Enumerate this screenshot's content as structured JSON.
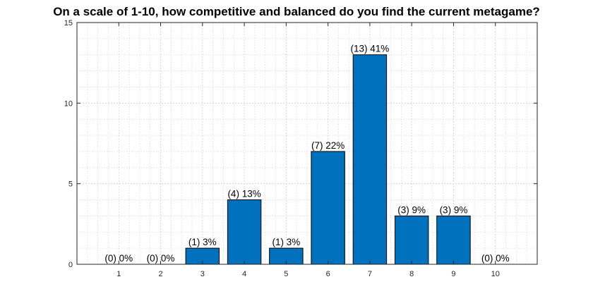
{
  "chart_data": {
    "type": "bar",
    "title": "On a scale of 1-10, how competitive and balanced do you find the current metagame?",
    "xlabel": "",
    "ylabel": "",
    "categories": [
      "1",
      "2",
      "3",
      "4",
      "5",
      "6",
      "7",
      "8",
      "9",
      "10"
    ],
    "values": [
      0,
      0,
      1,
      4,
      1,
      7,
      13,
      3,
      3,
      0
    ],
    "data_labels": [
      "(0) 0%",
      "(0) 0%",
      "(1) 3%",
      "(4) 13%",
      "(1) 3%",
      "(7) 22%",
      "(13) 41%",
      "(3) 9%",
      "(3) 9%",
      "(0) 0%"
    ],
    "xlim": [
      0,
      11
    ],
    "ylim": [
      0,
      15
    ],
    "yticks": [
      "0",
      "5",
      "10",
      "15"
    ],
    "grid": true,
    "minor_grid": true,
    "bar_color": "#0072BD",
    "bar_edge_color": "#000000"
  }
}
